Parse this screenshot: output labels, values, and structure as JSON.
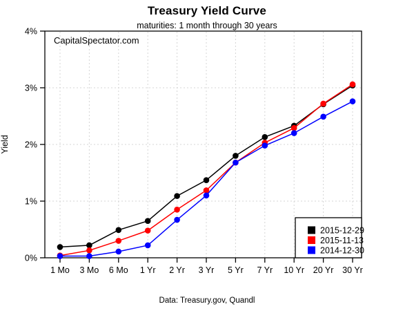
{
  "chart": {
    "title": "Treasury Yield Curve",
    "subtitle": "maturities: 1 month through 30 years",
    "watermark": "CapitalSpectator.com",
    "ylabel": "Yield",
    "caption": "Data: Treasury.gov, Quandl"
  },
  "chart_data": {
    "type": "line",
    "title": "Treasury Yield Curve",
    "subtitle": "maturities: 1 month through 30 years",
    "xlabel": "",
    "ylabel": "Yield",
    "ylim": [
      0,
      4
    ],
    "grid": "dotted",
    "legend_position": "bottom-right",
    "categories": [
      "1 Mo",
      "3 Mo",
      "6 Mo",
      "1 Yr",
      "2 Yr",
      "3 Yr",
      "5 Yr",
      "7 Yr",
      "10 Yr",
      "20 Yr",
      "30 Yr"
    ],
    "y_ticks": [
      {
        "value": 0,
        "label": "0%"
      },
      {
        "value": 1,
        "label": "1%"
      },
      {
        "value": 2,
        "label": "2%"
      },
      {
        "value": 3,
        "label": "3%"
      },
      {
        "value": 4,
        "label": "4%"
      }
    ],
    "y_gridlines": [
      1,
      2,
      3
    ],
    "series": [
      {
        "name": "2015-12-29",
        "color": "#000000",
        "values": [
          0.19,
          0.22,
          0.49,
          0.65,
          1.09,
          1.37,
          1.8,
          2.13,
          2.33,
          2.71,
          3.04
        ]
      },
      {
        "name": "2015-11-13",
        "color": "#ff0000",
        "values": [
          0.04,
          0.13,
          0.3,
          0.48,
          0.85,
          1.19,
          1.68,
          2.03,
          2.29,
          2.72,
          3.06
        ]
      },
      {
        "name": "2014-12-30",
        "color": "#0000ff",
        "values": [
          0.03,
          0.03,
          0.11,
          0.22,
          0.67,
          1.1,
          1.68,
          1.98,
          2.2,
          2.49,
          2.76
        ]
      }
    ]
  },
  "colors": {
    "background": "#ffffff",
    "axis": "#000000",
    "gridline": "#d4d4d4",
    "legend_border": "#000000"
  }
}
